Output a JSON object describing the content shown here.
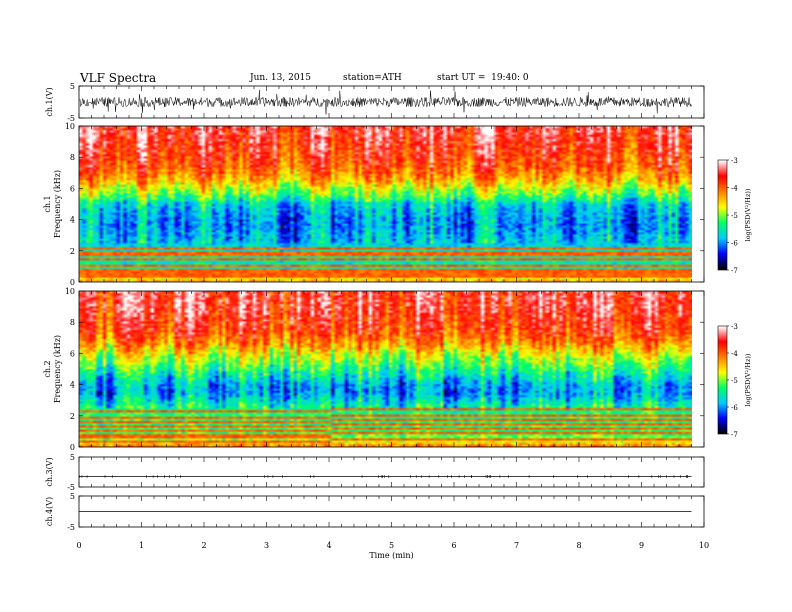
{
  "header": {
    "title": "VLF Spectra",
    "date": "Jun. 13, 2015",
    "station": "station=ATH",
    "start": "start UT =  19:40: 0"
  },
  "colorbar": {
    "label": "log(PSD(V²/Hz))",
    "ticks": [
      "-3",
      "-4",
      "-5",
      "-6",
      "-7"
    ],
    "range": [
      -7,
      -3
    ],
    "colors": [
      "#000000",
      "#0000ff",
      "#00ccff",
      "#00ff66",
      "#ffff00",
      "#ff8000",
      "#ff0000",
      "#ffffff"
    ]
  },
  "chart_data": [
    {
      "type": "line",
      "name": "ch.1 waveform",
      "ylabel": "ch.1(V)",
      "yticks": [
        "5",
        "-5"
      ],
      "ylim": [
        -5,
        5
      ],
      "xlim": [
        0,
        10
      ],
      "noise_amplitude": 1.5,
      "data_end_min": 9.8
    },
    {
      "type": "heatmap",
      "name": "ch.1 spectrogram",
      "ylabel_channel": "ch.1",
      "ylabel": "Frequency (kHz)",
      "yticks": [
        "10",
        "8",
        "6",
        "4",
        "2",
        "0"
      ],
      "ylim": [
        0,
        10
      ],
      "xlim": [
        0,
        10
      ],
      "data_end_min": 9.8,
      "psd_profile": {
        "freq_khz": [
          0,
          0.5,
          1,
          1.5,
          2,
          2.5,
          3,
          3.5,
          4,
          4.5,
          5,
          5.5,
          6,
          6.5,
          7,
          7.5,
          8,
          8.5,
          9,
          9.5,
          10
        ],
        "log_psd": [
          -4.2,
          -5.2,
          -5.6,
          -5.5,
          -5.6,
          -5.8,
          -5.9,
          -6.0,
          -6.0,
          -5.9,
          -5.7,
          -5.2,
          -4.8,
          -4.4,
          -4.1,
          -3.9,
          -3.8,
          -3.7,
          -3.6,
          -3.5,
          -3.5
        ]
      },
      "band_lines_khz": [
        0.3,
        0.55,
        0.8,
        1.1,
        1.4,
        1.8,
        2.2
      ]
    },
    {
      "type": "heatmap",
      "name": "ch.2 spectrogram",
      "ylabel_channel": "ch.2",
      "ylabel": "Frequency (kHz)",
      "yticks": [
        "10",
        "8",
        "6",
        "4",
        "2",
        "0"
      ],
      "ylim": [
        0,
        10
      ],
      "xlim": [
        0,
        10
      ],
      "data_end_min": 9.8,
      "psd_profile": {
        "freq_khz": [
          0,
          0.5,
          1,
          1.5,
          2,
          2.5,
          3,
          3.5,
          4,
          4.5,
          5,
          5.5,
          6,
          6.5,
          7,
          7.5,
          8,
          8.5,
          9,
          9.5,
          10
        ],
        "log_psd": [
          -4.0,
          -5.0,
          -5.2,
          -5.3,
          -5.3,
          -5.4,
          -5.7,
          -6.0,
          -5.9,
          -5.6,
          -5.3,
          -5.0,
          -4.7,
          -4.3,
          -4.0,
          -3.8,
          -3.7,
          -3.6,
          -3.5,
          -3.5,
          -3.5
        ]
      },
      "band_lines_khz": [
        0.3,
        0.7,
        1.0,
        1.3,
        1.6,
        1.9,
        2.3
      ],
      "band_shift_min": 4.0
    },
    {
      "type": "line",
      "name": "ch.3 waveform",
      "ylabel": "ch.3(V)",
      "yticks": [
        "5",
        "-5"
      ],
      "ylim": [
        -5,
        5
      ],
      "xlim": [
        0,
        10
      ],
      "level": -1.5,
      "data_end_min": 9.8
    },
    {
      "type": "line",
      "name": "ch.4 waveform",
      "ylabel": "ch.4(V)",
      "yticks": [
        "5",
        "-5"
      ],
      "ylim": [
        -5,
        5
      ],
      "xlim": [
        0,
        10
      ],
      "level": 0,
      "data_end_min": 9.8
    }
  ],
  "xaxis": {
    "label": "Time  (min)",
    "ticks": [
      "0",
      "1",
      "2",
      "3",
      "4",
      "5",
      "6",
      "7",
      "8",
      "9",
      "10"
    ],
    "range": [
      0,
      10
    ]
  }
}
